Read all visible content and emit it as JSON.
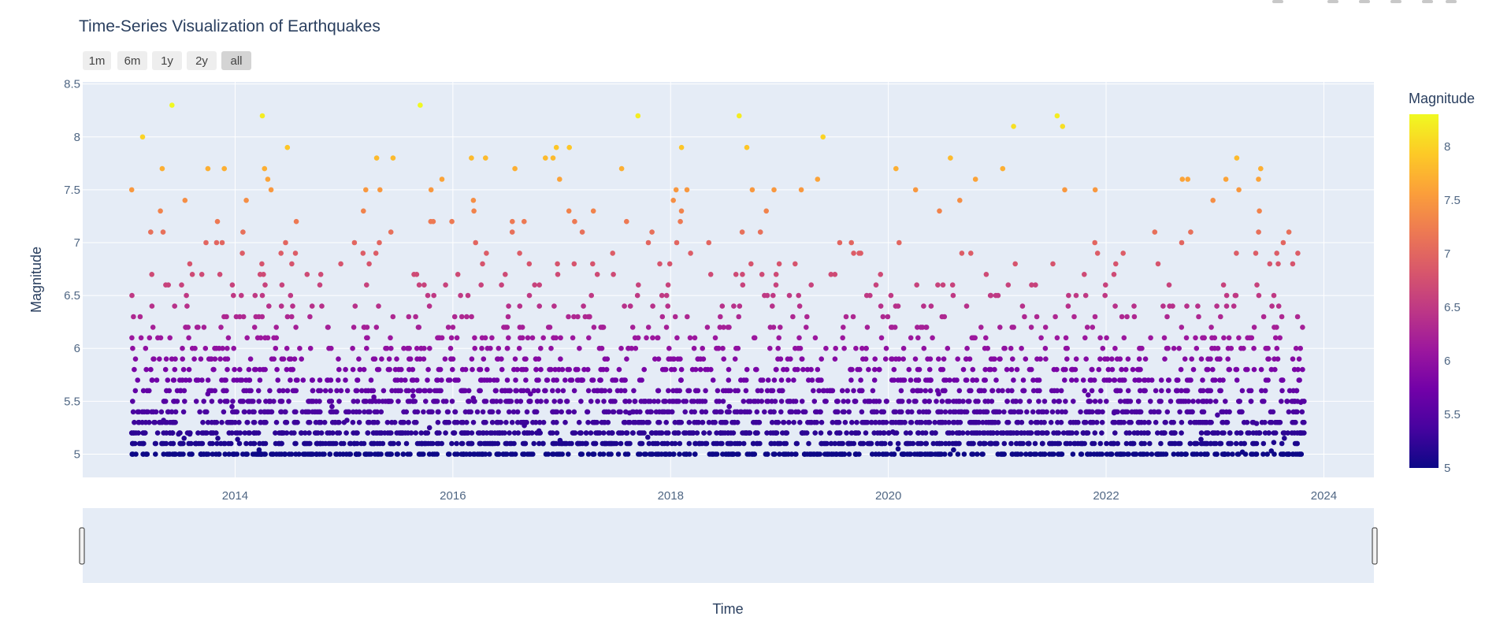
{
  "chart_data": {
    "type": "scatter",
    "title": "Time-Series Visualization of Earthquakes",
    "xlabel": "Time",
    "ylabel": "Magnitude",
    "xlim": [
      2012.6,
      2024.46
    ],
    "ylim": [
      4.78,
      8.52
    ],
    "x_ticks": [
      2014,
      2016,
      2018,
      2020,
      2022,
      2024
    ],
    "y_ticks": [
      5,
      5.5,
      6,
      6.5,
      7,
      7.5,
      8,
      8.5
    ],
    "y_tick_labels": [
      "5",
      "5.5",
      "6",
      "6.5",
      "7",
      "7.5",
      "8",
      "8.5"
    ],
    "x_tick_labels": [
      "2014",
      "2016",
      "2018",
      "2020",
      "2022",
      "2024"
    ],
    "data_x_range": [
      2013.05,
      2023.82
    ],
    "colorbar": {
      "title": "Magnitude",
      "range": [
        5,
        8.3
      ],
      "ticks": [
        5,
        5.5,
        6,
        6.5,
        7,
        7.5,
        8
      ],
      "tick_labels": [
        "5",
        "5.5",
        "6",
        "6.5",
        "7",
        "7.5",
        "8"
      ],
      "colorscale": [
        "#0d0887",
        "#46039f",
        "#7201a8",
        "#9c179e",
        "#bd3786",
        "#d8576b",
        "#ed7953",
        "#fb9f3a",
        "#fdca26",
        "#f0f921"
      ]
    },
    "notable_points": [
      {
        "x": 2013.05,
        "y": 7.5
      },
      {
        "x": 2013.15,
        "y": 8.0
      },
      {
        "x": 2013.33,
        "y": 7.7
      },
      {
        "x": 2013.42,
        "y": 8.3
      },
      {
        "x": 2013.75,
        "y": 7.7
      },
      {
        "x": 2013.9,
        "y": 7.7
      },
      {
        "x": 2014.25,
        "y": 8.2
      },
      {
        "x": 2014.27,
        "y": 7.7
      },
      {
        "x": 2014.3,
        "y": 7.6
      },
      {
        "x": 2014.33,
        "y": 7.5
      },
      {
        "x": 2014.48,
        "y": 7.9
      },
      {
        "x": 2015.2,
        "y": 7.5
      },
      {
        "x": 2015.3,
        "y": 7.8
      },
      {
        "x": 2015.33,
        "y": 7.5
      },
      {
        "x": 2015.45,
        "y": 7.8
      },
      {
        "x": 2015.7,
        "y": 8.3
      },
      {
        "x": 2015.8,
        "y": 7.5
      },
      {
        "x": 2015.9,
        "y": 7.6
      },
      {
        "x": 2016.17,
        "y": 7.8
      },
      {
        "x": 2016.3,
        "y": 7.8
      },
      {
        "x": 2016.57,
        "y": 7.7
      },
      {
        "x": 2016.85,
        "y": 7.8
      },
      {
        "x": 2016.92,
        "y": 7.8
      },
      {
        "x": 2016.95,
        "y": 7.9
      },
      {
        "x": 2016.98,
        "y": 7.6
      },
      {
        "x": 2017.07,
        "y": 7.9
      },
      {
        "x": 2017.55,
        "y": 7.7
      },
      {
        "x": 2017.7,
        "y": 8.2
      },
      {
        "x": 2018.05,
        "y": 7.5
      },
      {
        "x": 2018.1,
        "y": 7.9
      },
      {
        "x": 2018.15,
        "y": 7.5
      },
      {
        "x": 2018.63,
        "y": 8.2
      },
      {
        "x": 2018.7,
        "y": 7.9
      },
      {
        "x": 2018.75,
        "y": 7.5
      },
      {
        "x": 2018.95,
        "y": 7.5
      },
      {
        "x": 2019.2,
        "y": 7.5
      },
      {
        "x": 2019.35,
        "y": 7.6
      },
      {
        "x": 2019.4,
        "y": 8.0
      },
      {
        "x": 2020.07,
        "y": 7.7
      },
      {
        "x": 2020.25,
        "y": 7.5
      },
      {
        "x": 2020.57,
        "y": 7.8
      },
      {
        "x": 2020.8,
        "y": 7.6
      },
      {
        "x": 2021.05,
        "y": 7.7
      },
      {
        "x": 2021.15,
        "y": 8.1
      },
      {
        "x": 2021.55,
        "y": 8.2
      },
      {
        "x": 2021.6,
        "y": 8.1
      },
      {
        "x": 2021.62,
        "y": 7.5
      },
      {
        "x": 2021.9,
        "y": 7.5
      },
      {
        "x": 2022.7,
        "y": 7.6
      },
      {
        "x": 2022.75,
        "y": 7.6
      },
      {
        "x": 2023.1,
        "y": 7.6
      },
      {
        "x": 2023.2,
        "y": 7.8
      },
      {
        "x": 2023.22,
        "y": 7.5
      },
      {
        "x": 2023.4,
        "y": 7.6
      },
      {
        "x": 2023.42,
        "y": 7.7
      }
    ]
  },
  "range_selector": {
    "buttons": [
      {
        "label": "1m",
        "active": false
      },
      {
        "label": "6m",
        "active": false
      },
      {
        "label": "1y",
        "active": false
      },
      {
        "label": "2y",
        "active": false
      },
      {
        "label": "all",
        "active": true
      }
    ]
  },
  "colors": {
    "plot_bg": "#e5ecf6",
    "grid": "#ffffff",
    "text": "#2a3f5f",
    "tick_text": "#506784",
    "button_bg": "#eeeeee",
    "button_active_bg": "#d4d4d4"
  }
}
